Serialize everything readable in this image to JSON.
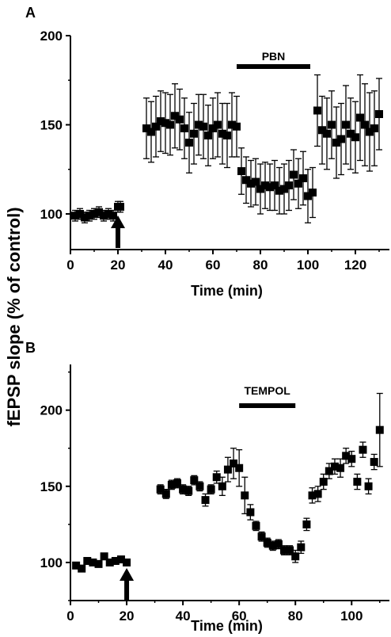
{
  "shared_ylabel": "fEPSP slope (% of control)",
  "chart_data": [
    {
      "panel": "A",
      "type": "scatter",
      "xlabel": "Time (min)",
      "xlim": [
        0,
        135
      ],
      "ylim": [
        80,
        200
      ],
      "xticks": [
        0,
        20,
        40,
        60,
        80,
        100,
        120
      ],
      "yticks": [
        100,
        150,
        200
      ],
      "bar_label": "PBN",
      "bar_range": [
        70,
        101
      ],
      "arrow_x": 20,
      "series": [
        {
          "x": [
            2,
            4,
            6,
            8,
            10,
            12,
            14,
            16,
            18,
            20,
            21,
            32,
            34,
            36,
            38,
            40,
            42,
            44,
            46,
            48,
            50,
            52,
            54,
            56,
            58,
            60,
            62,
            64,
            66,
            68,
            70,
            72,
            74,
            76,
            78,
            80,
            82,
            84,
            86,
            88,
            90,
            92,
            94,
            96,
            98,
            100,
            102,
            104,
            106,
            108,
            110,
            112,
            114,
            116,
            118,
            120,
            122,
            124,
            126,
            128,
            130
          ],
          "y": [
            99,
            100,
            98,
            99,
            100,
            101,
            99,
            100,
            99,
            104,
            104,
            148,
            146,
            149,
            152,
            151,
            150,
            155,
            153,
            148,
            140,
            145,
            150,
            149,
            144,
            148,
            150,
            145,
            144,
            150,
            149,
            124,
            119,
            117,
            118,
            114,
            116,
            115,
            116,
            113,
            114,
            116,
            122,
            117,
            120,
            110,
            112,
            158,
            147,
            145,
            150,
            140,
            142,
            150,
            145,
            143,
            154,
            150,
            146,
            148,
            156
          ],
          "err": [
            3,
            3,
            3,
            3,
            3,
            3,
            3,
            3,
            3,
            3,
            3,
            17,
            17,
            17,
            17,
            17,
            17,
            18,
            17,
            17,
            17,
            17,
            17,
            18,
            17,
            17,
            18,
            17,
            18,
            18,
            17,
            13,
            13,
            13,
            13,
            14,
            13,
            13,
            14,
            13,
            14,
            14,
            14,
            14,
            15,
            15,
            14,
            20,
            19,
            20,
            19,
            20,
            20,
            22,
            20,
            20,
            24,
            23,
            22,
            21,
            20
          ]
        }
      ]
    },
    {
      "panel": "B",
      "type": "scatter",
      "xlabel": "Time (min)",
      "xlim": [
        0,
        114
      ],
      "ylim": [
        75,
        230
      ],
      "xticks": [
        0,
        20,
        40,
        60,
        80,
        100
      ],
      "yticks": [
        100,
        150,
        200
      ],
      "bar_label": "TEMPOL",
      "bar_range": [
        60,
        80
      ],
      "arrow_x": 20,
      "series": [
        {
          "x": [
            2,
            4,
            6,
            8,
            10,
            12,
            14,
            16,
            18,
            20,
            32,
            34,
            36,
            38,
            40,
            42,
            44,
            46,
            48,
            50,
            52,
            54,
            56,
            58,
            60,
            62,
            64,
            66,
            68,
            70,
            72,
            74,
            76,
            78,
            80,
            82,
            84,
            86,
            88,
            90,
            92,
            94,
            96,
            98,
            100,
            102,
            104,
            106,
            108,
            110
          ],
          "y": [
            98,
            96,
            101,
            100,
            99,
            104,
            100,
            101,
            102,
            100,
            148,
            145,
            151,
            152,
            148,
            147,
            154,
            150,
            141,
            148,
            156,
            150,
            161,
            165,
            162,
            144,
            133,
            124,
            117,
            113,
            111,
            112,
            108,
            108,
            104,
            110,
            125,
            144,
            145,
            153,
            160,
            163,
            162,
            170,
            168,
            153,
            174,
            150,
            166,
            187
          ],
          "err": [
            2,
            2,
            2,
            2,
            2,
            2,
            2,
            2,
            2,
            2,
            3,
            3,
            3,
            3,
            3,
            3,
            3,
            3,
            4,
            3,
            4,
            6,
            8,
            10,
            12,
            12,
            5,
            3,
            3,
            3,
            3,
            3,
            3,
            3,
            4,
            4,
            4,
            5,
            5,
            5,
            5,
            5,
            6,
            5,
            5,
            5,
            5,
            5,
            5,
            24
          ]
        }
      ]
    }
  ]
}
